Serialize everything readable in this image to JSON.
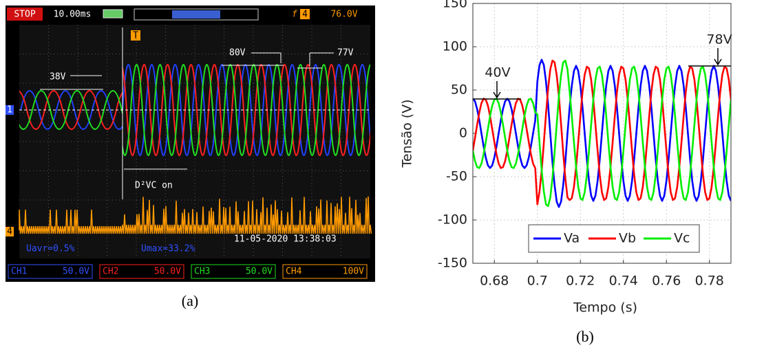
{
  "scope": {
    "status": "STOP",
    "timebase": "10.00ms",
    "trigger_source": "4",
    "trigger_level": "76.0V",
    "trigger_marker": "T",
    "ch1_marker": "1",
    "ch4_marker": "4",
    "annotations": [
      "38V",
      "80V",
      "77V",
      "D²VC on"
    ],
    "measurements": [
      "Uavr=0.5%",
      "Umax=33.2%"
    ],
    "timestamp": "11-05-2020 13:38:03",
    "channels": [
      {
        "name": "CH1",
        "scale": "50.0V"
      },
      {
        "name": "CH2",
        "scale": "50.0V"
      },
      {
        "name": "CH3",
        "scale": "50.0V"
      },
      {
        "name": "CH4",
        "scale": "100V"
      }
    ]
  },
  "captions": [
    "(a)",
    "(b)"
  ],
  "chart_data": {
    "type": "line",
    "xlabel": "Tempo (s)",
    "ylabel": "Tensão (V)",
    "annotations": [
      "40V",
      "78V"
    ],
    "x": [
      0.67,
      0.671,
      0.672,
      0.673,
      0.674,
      0.675,
      0.676,
      0.677,
      0.678,
      0.679,
      0.68,
      0.681,
      0.682,
      0.683,
      0.684,
      0.685,
      0.686,
      0.687,
      0.688,
      0.689,
      0.69,
      0.691,
      0.692,
      0.693,
      0.694,
      0.695,
      0.696,
      0.697,
      0.698,
      0.699,
      0.7,
      0.701,
      0.702,
      0.703,
      0.704,
      0.705,
      0.706,
      0.707,
      0.708,
      0.709,
      0.71,
      0.711,
      0.712,
      0.713,
      0.714,
      0.715,
      0.716,
      0.717,
      0.718,
      0.719,
      0.72,
      0.721,
      0.722,
      0.723,
      0.724,
      0.725,
      0.726,
      0.727,
      0.728,
      0.729,
      0.73,
      0.731,
      0.732,
      0.733,
      0.734,
      0.735,
      0.736,
      0.737,
      0.738,
      0.739,
      0.74,
      0.741,
      0.742,
      0.743,
      0.744,
      0.745,
      0.746,
      0.747,
      0.748,
      0.749,
      0.75,
      0.751,
      0.752,
      0.753,
      0.754,
      0.755,
      0.756,
      0.757,
      0.758,
      0.759,
      0.76,
      0.761,
      0.762,
      0.763,
      0.764,
      0.765,
      0.766,
      0.767,
      0.768,
      0.769,
      0.77,
      0.771,
      0.772,
      0.773,
      0.774,
      0.775,
      0.776,
      0.777,
      0.778,
      0.779,
      0.78,
      0.781,
      0.782,
      0.783,
      0.784,
      0.785,
      0.786,
      0.787,
      0.788,
      0.789,
      0.79
    ],
    "series": [
      {
        "name": "Va",
        "color": "#0000ff",
        "values": [
          40,
          37,
          28,
          15,
          0,
          -15,
          -28,
          -37,
          -40,
          -37,
          -28,
          -15,
          0,
          15,
          28,
          37,
          40,
          37,
          28,
          15,
          0,
          -15,
          -28,
          -37,
          -40,
          -37,
          -28,
          -15,
          0,
          15,
          60,
          79,
          85,
          79,
          60,
          33,
          0,
          -33,
          -60,
          -79,
          -85,
          -79,
          -60,
          -33,
          0,
          30,
          55,
          72,
          78,
          72,
          55,
          30,
          0,
          -30,
          -55,
          -72,
          -78,
          -72,
          -55,
          -30,
          0,
          30,
          55,
          72,
          78,
          72,
          55,
          30,
          0,
          -30,
          -55,
          -72,
          -78,
          -72,
          -55,
          -30,
          0,
          30,
          55,
          72,
          78,
          72,
          55,
          30,
          0,
          -30,
          -55,
          -72,
          -78,
          -72,
          -55,
          -30,
          0,
          30,
          55,
          72,
          78,
          72,
          55,
          30,
          0,
          -30,
          -55,
          -72,
          -78,
          -72,
          -55,
          -30,
          0,
          30,
          55,
          72,
          78,
          72,
          55,
          30,
          0,
          -30,
          -55,
          -72,
          -78
        ]
      },
      {
        "name": "Vb",
        "color": "#ff0000",
        "values": [
          -20,
          -5,
          10,
          24,
          35,
          40,
          39,
          32,
          20,
          5,
          -10,
          -24,
          -35,
          -40,
          -39,
          -32,
          -20,
          -5,
          10,
          24,
          35,
          40,
          39,
          32,
          20,
          5,
          -10,
          -24,
          -35,
          -40,
          -82,
          -67,
          -43,
          -11,
          22,
          52,
          74,
          84,
          82,
          67,
          43,
          11,
          -22,
          -52,
          -74,
          -77,
          -75,
          -62,
          -39,
          -10,
          20,
          48,
          68,
          77,
          75,
          62,
          39,
          10,
          -20,
          -48,
          -68,
          -77,
          -75,
          -62,
          -39,
          -10,
          20,
          48,
          68,
          77,
          75,
          62,
          39,
          10,
          -20,
          -48,
          -68,
          -77,
          -75,
          -62,
          -39,
          -10,
          20,
          48,
          68,
          77,
          75,
          62,
          39,
          10,
          -20,
          -48,
          -68,
          -77,
          -75,
          -62,
          -39,
          -10,
          20,
          48,
          68,
          77,
          75,
          62,
          39,
          10,
          -20,
          -48,
          -68,
          -77,
          -75,
          -62,
          -39,
          -10,
          20,
          48,
          68,
          77,
          75,
          62,
          39
        ]
      },
      {
        "name": "Vc",
        "color": "#00ee00",
        "values": [
          -20,
          -32,
          -39,
          -40,
          -35,
          -24,
          -10,
          5,
          20,
          32,
          39,
          40,
          35,
          24,
          10,
          -5,
          -20,
          -32,
          -39,
          -40,
          -35,
          -24,
          -10,
          5,
          20,
          32,
          39,
          40,
          35,
          24,
          22,
          -11,
          -43,
          -67,
          -82,
          -84,
          -74,
          -52,
          -22,
          11,
          43,
          67,
          82,
          84,
          74,
          48,
          20,
          -10,
          -39,
          -62,
          -75,
          -77,
          -68,
          -48,
          -20,
          10,
          39,
          62,
          75,
          77,
          68,
          48,
          20,
          -10,
          -39,
          -62,
          -75,
          -77,
          -68,
          -48,
          -20,
          10,
          39,
          62,
          75,
          77,
          68,
          48,
          20,
          -10,
          -39,
          -62,
          -75,
          -77,
          -68,
          -48,
          -20,
          10,
          39,
          62,
          75,
          77,
          68,
          48,
          20,
          -10,
          -39,
          -62,
          -75,
          -77,
          -68,
          -48,
          -20,
          10,
          39,
          62,
          75,
          77,
          68,
          48,
          20,
          -10,
          -39,
          -62,
          -75,
          -77,
          -68,
          -48,
          -20,
          10,
          39
        ]
      }
    ],
    "xlim": [
      0.67,
      0.79
    ],
    "ylim": [
      -150,
      150
    ],
    "xticks": [
      0.68,
      0.7,
      0.72,
      0.74,
      0.76,
      0.78
    ],
    "yticks": [
      -150,
      -100,
      -50,
      0,
      50,
      100,
      150
    ],
    "grid": true,
    "legend": "bottom"
  }
}
